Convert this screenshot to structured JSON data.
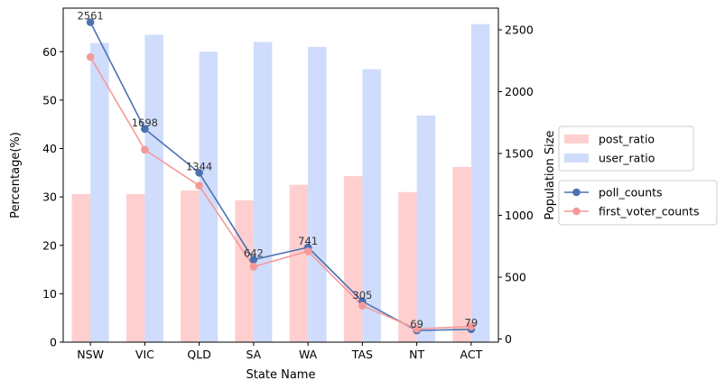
{
  "chart_data": {
    "type": "bar",
    "categories": [
      "NSW",
      "VIC",
      "QLD",
      "SA",
      "WA",
      "TAS",
      "NT",
      "ACT"
    ],
    "xlabel": "State Name",
    "ylabel_left": "Percentage(%)",
    "ylabel_right": "Population Size",
    "ylim_left": [
      0,
      69
    ],
    "ylim_right": [
      -25,
      2675
    ],
    "yticks_left": [
      0,
      10,
      20,
      30,
      40,
      50,
      60
    ],
    "yticks_right": [
      0,
      500,
      1000,
      1500,
      2000,
      2500
    ],
    "bar_series": [
      {
        "name": "post_ratio",
        "color": "#ffcfcf",
        "values": [
          30.6,
          30.6,
          31.3,
          29.3,
          32.5,
          34.3,
          31.0,
          36.2
        ]
      },
      {
        "name": "user_ratio",
        "color": "#cfdcfb",
        "values": [
          61.8,
          63.5,
          60.0,
          62.0,
          61.0,
          56.4,
          46.8,
          65.7
        ]
      }
    ],
    "line_series": [
      {
        "name": "poll_counts",
        "color": "#4a72b0",
        "values": [
          2561,
          1698,
          1344,
          642,
          741,
          305,
          69,
          79
        ],
        "data_labels": [
          "2561",
          "1698",
          "1344",
          "642",
          "741",
          "305",
          "69",
          "79"
        ]
      },
      {
        "name": "first_voter_counts",
        "color": "#f59a9a",
        "values": [
          2280,
          1530,
          1240,
          585,
          710,
          270,
          82,
          102
        ]
      }
    ],
    "legend": {
      "placement": "right",
      "groups": [
        [
          "post_ratio",
          "user_ratio"
        ],
        [
          "poll_counts",
          "first_voter_counts"
        ]
      ]
    },
    "grid": false
  }
}
